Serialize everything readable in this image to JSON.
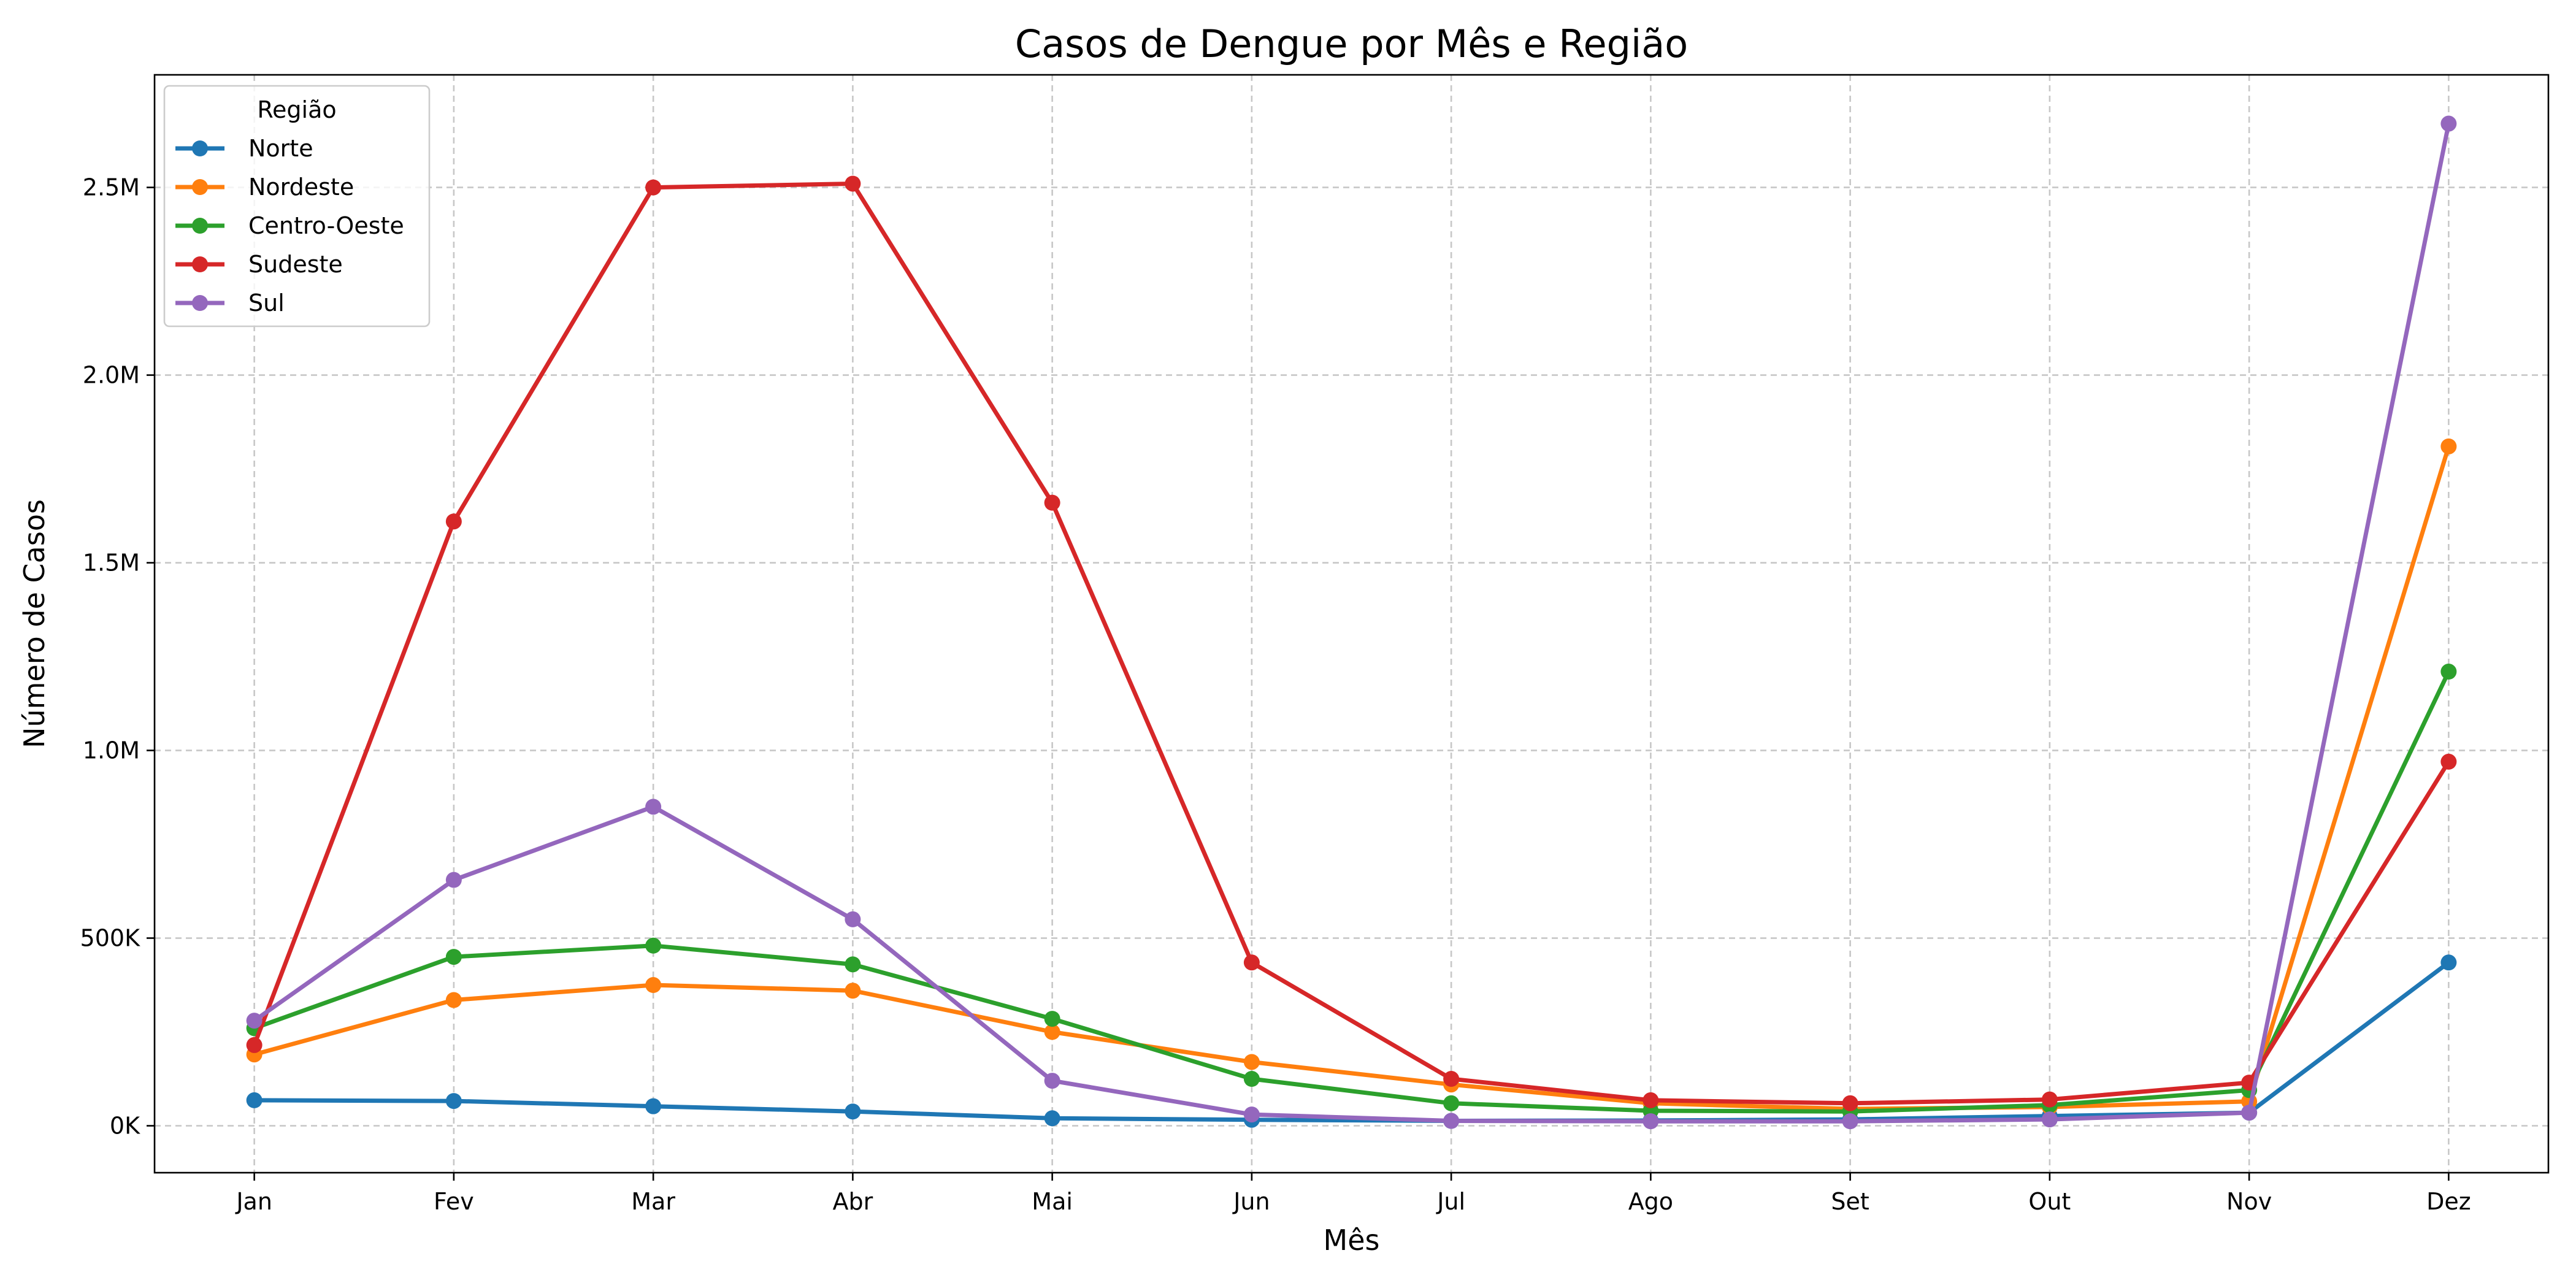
{
  "chart_data": {
    "type": "line",
    "title": "Casos de Dengue por Mês e Região",
    "xlabel": "Mês",
    "ylabel": "Número de Casos",
    "categories": [
      "Jan",
      "Fev",
      "Mar",
      "Abr",
      "Mai",
      "Jun",
      "Jul",
      "Ago",
      "Set",
      "Out",
      "Nov",
      "Dez"
    ],
    "ylim": [
      -125000,
      2800000
    ],
    "yticks": [
      0,
      500000,
      1000000,
      1500000,
      2000000,
      2500000
    ],
    "ytick_labels": [
      "0K",
      "500K",
      "1.0M",
      "1.5M",
      "2.0M",
      "2.5M"
    ],
    "grid": true,
    "legend": {
      "title": "Região",
      "placement": "top-left"
    },
    "series": [
      {
        "name": "Norte",
        "color": "#1f77b4",
        "values": [
          68000,
          66000,
          52000,
          38000,
          20000,
          16000,
          13000,
          14000,
          17000,
          26000,
          35000,
          435000
        ]
      },
      {
        "name": "Nordeste",
        "color": "#ff7f0e",
        "values": [
          190000,
          335000,
          375000,
          360000,
          250000,
          170000,
          110000,
          60000,
          45000,
          50000,
          65000,
          1810000
        ]
      },
      {
        "name": "Centro-Oeste",
        "color": "#2ca02c",
        "values": [
          260000,
          450000,
          480000,
          430000,
          285000,
          125000,
          60000,
          40000,
          38000,
          55000,
          95000,
          1210000
        ]
      },
      {
        "name": "Sudeste",
        "color": "#d62728",
        "values": [
          215000,
          1610000,
          2500000,
          2510000,
          1660000,
          435000,
          125000,
          68000,
          60000,
          70000,
          115000,
          970000
        ]
      },
      {
        "name": "Sul",
        "color": "#9467bd",
        "values": [
          280000,
          655000,
          850000,
          550000,
          120000,
          30000,
          13000,
          12000,
          12000,
          17000,
          35000,
          2670000
        ]
      }
    ]
  }
}
